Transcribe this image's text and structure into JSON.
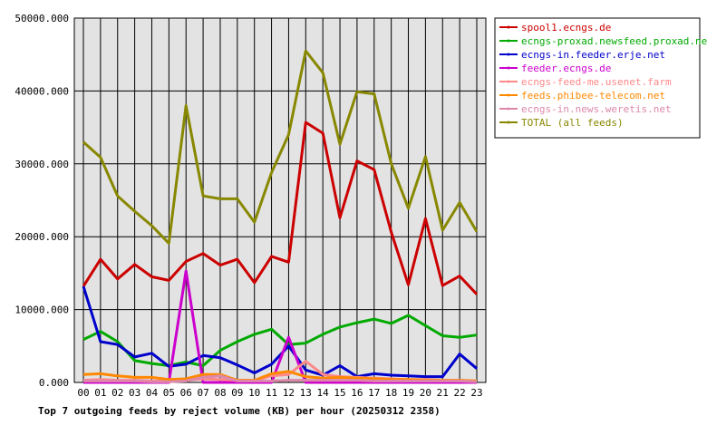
{
  "chart_data": {
    "type": "line",
    "title": "Top 7 outgoing feeds by reject volume (KB) per hour (20250312 2358)",
    "xlabel": "",
    "ylabel": "",
    "ylim": [
      0,
      50000
    ],
    "yticks": [
      "0.000",
      "10000.000",
      "20000.000",
      "30000.000",
      "40000.000",
      "50000.000"
    ],
    "categories": [
      "00",
      "01",
      "02",
      "03",
      "04",
      "05",
      "06",
      "07",
      "08",
      "09",
      "10",
      "11",
      "12",
      "13",
      "14",
      "15",
      "16",
      "17",
      "18",
      "19",
      "20",
      "21",
      "22",
      "23"
    ],
    "grid": true,
    "legend_position": "top-right",
    "series": [
      {
        "name": "spool1.ecngs.de",
        "color": "#cc0000",
        "values": [
          13200,
          16900,
          14200,
          16200,
          14500,
          14000,
          16600,
          17700,
          16100,
          16900,
          13700,
          17300,
          16500,
          35700,
          34200,
          22600,
          30400,
          29200,
          20600,
          13400,
          22500,
          13300,
          14600,
          12100
        ]
      },
      {
        "name": "ecngs-proxad.newsfeed.proxad.net",
        "color": "#00aa00",
        "values": [
          5900,
          7000,
          5600,
          3000,
          2600,
          2300,
          2800,
          2300,
          4400,
          5600,
          6600,
          7300,
          5200,
          5400,
          6600,
          7600,
          8200,
          8700,
          8100,
          9200,
          7800,
          6400,
          6200,
          6500
        ]
      },
      {
        "name": "ecngs-in.feeder.erje.net",
        "color": "#0000cc",
        "values": [
          13200,
          5600,
          5200,
          3500,
          4000,
          2200,
          2500,
          3700,
          3400,
          2400,
          1300,
          2500,
          5000,
          1700,
          1000,
          2300,
          800,
          1200,
          1000,
          900,
          800,
          800,
          3900,
          1900
        ]
      },
      {
        "name": "feeder.ecngs.de",
        "color": "#cc00cc",
        "values": [
          0,
          0,
          0,
          0,
          0,
          0,
          15300,
          0,
          0,
          0,
          0,
          0,
          6200,
          0,
          0,
          0,
          0,
          0,
          0,
          0,
          0,
          0,
          0,
          0
        ]
      },
      {
        "name": "ecngs-feed-me.usenet.farm",
        "color": "#ff8888",
        "values": [
          300,
          400,
          300,
          300,
          200,
          200,
          300,
          500,
          400,
          300,
          300,
          900,
          1100,
          2900,
          1100,
          800,
          700,
          600,
          500,
          400,
          400,
          300,
          200,
          200
        ]
      },
      {
        "name": "feeds.phibee-telecom.net",
        "color": "#ff8800",
        "values": [
          1100,
          1200,
          900,
          700,
          700,
          400,
          500,
          1100,
          1100,
          300,
          300,
          1200,
          1500,
          800,
          600,
          700,
          600,
          500,
          400,
          400,
          300,
          300,
          300,
          200
        ]
      },
      {
        "name": "ecngs-in.news.weretis.net",
        "color": "#dd88aa",
        "values": [
          200,
          200,
          200,
          200,
          100,
          100,
          200,
          700,
          900,
          200,
          200,
          200,
          300,
          300,
          300,
          300,
          300,
          200,
          200,
          200,
          200,
          200,
          200,
          100
        ]
      },
      {
        "name": "TOTAL (all feeds)",
        "color": "#888800",
        "values": [
          33000,
          30900,
          25600,
          23500,
          21500,
          19100,
          38000,
          25600,
          25200,
          25200,
          22000,
          28800,
          34000,
          45500,
          42500,
          32700,
          39900,
          39600,
          30000,
          23900,
          31000,
          20900,
          24700,
          20700
        ]
      }
    ]
  }
}
